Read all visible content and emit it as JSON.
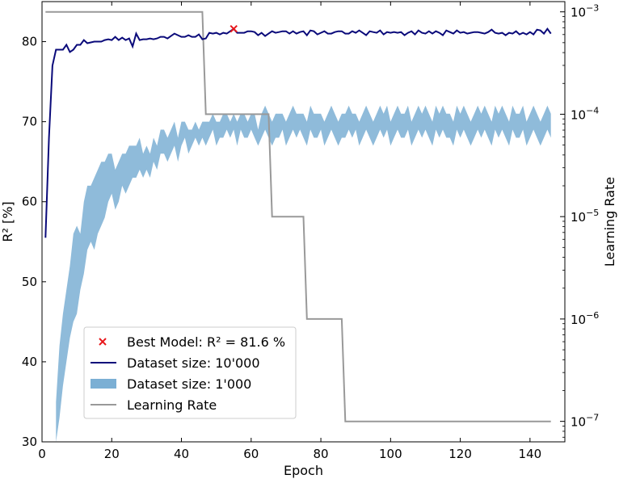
{
  "chart_data": {
    "type": "line",
    "xlabel": "Epoch",
    "ylabel_left": "R² [%]",
    "ylabel_right": "Learning Rate",
    "xlim": [
      0,
      150
    ],
    "ylim_left": [
      30,
      85
    ],
    "ylim_right_log10": [
      -7.2,
      -2.9
    ],
    "right_axis_scale": "log",
    "x_ticks": [
      0,
      20,
      40,
      60,
      80,
      100,
      120,
      140
    ],
    "y_left_ticks": [
      30,
      40,
      50,
      60,
      70,
      80
    ],
    "y_right_ticks": [
      {
        "value": 1e-07,
        "base": "10",
        "exp": "−7"
      },
      {
        "value": 1e-06,
        "base": "10",
        "exp": "−6"
      },
      {
        "value": 1e-05,
        "base": "10",
        "exp": "−5"
      },
      {
        "value": 0.0001,
        "base": "10",
        "exp": "−4"
      },
      {
        "value": 0.001,
        "base": "10",
        "exp": "−3"
      }
    ],
    "legend_position": "lower-left",
    "legend": [
      {
        "key": "best",
        "label_prefix": "Best Model: ",
        "label_math": "R² = 81.6 %"
      },
      {
        "key": "large",
        "label": "Dataset size: 10'000"
      },
      {
        "key": "small",
        "label": "Dataset size: 1'000"
      },
      {
        "key": "lr",
        "label": "Learning Rate"
      }
    ],
    "best_model": {
      "epoch": 55,
      "r2": 81.6
    },
    "series_large": {
      "color": "#0a0a7a",
      "x": [
        1,
        2,
        3,
        4,
        5,
        6,
        7,
        8,
        9,
        10,
        11,
        12,
        13,
        14,
        15,
        16,
        17,
        18,
        19,
        20,
        21,
        22,
        23,
        24,
        25,
        26,
        27,
        28,
        29,
        30,
        31,
        32,
        33,
        34,
        35,
        36,
        37,
        38,
        39,
        40,
        41,
        42,
        43,
        44,
        45,
        46,
        47,
        48,
        49,
        50,
        51,
        52,
        53,
        54,
        55,
        56,
        57,
        58,
        59,
        60,
        61,
        62,
        63,
        64,
        65,
        66,
        67,
        68,
        69,
        70,
        71,
        72,
        73,
        74,
        75,
        76,
        77,
        78,
        79,
        80,
        81,
        82,
        83,
        84,
        85,
        86,
        87,
        88,
        89,
        90,
        91,
        92,
        93,
        94,
        95,
        96,
        97,
        98,
        99,
        100,
        101,
        102,
        103,
        104,
        105,
        106,
        107,
        108,
        109,
        110,
        111,
        112,
        113,
        114,
        115,
        116,
        117,
        118,
        119,
        120,
        121,
        122,
        123,
        124,
        125,
        126,
        127,
        128,
        129,
        130,
        131,
        132,
        133,
        134,
        135,
        136,
        137,
        138,
        139,
        140,
        141,
        142,
        143,
        144,
        145,
        146
      ],
      "y": [
        55.5,
        68,
        77,
        79,
        79,
        79,
        79.6,
        78.7,
        79,
        79.6,
        79.6,
        80.2,
        79.8,
        79.9,
        80,
        80,
        80,
        80.2,
        80.3,
        80.2,
        80.6,
        80.2,
        80.5,
        80.2,
        80.4,
        79.4,
        81,
        80.2,
        80.3,
        80.3,
        80.4,
        80.3,
        80.4,
        80.6,
        80.6,
        80.4,
        80.7,
        81,
        80.8,
        80.6,
        80.6,
        80.8,
        80.6,
        80.6,
        80.9,
        80.3,
        80.4,
        81.1,
        81,
        81.1,
        80.9,
        81.1,
        81,
        81.3,
        81.6,
        81.1,
        81.1,
        81.1,
        81.3,
        81.3,
        81.2,
        80.8,
        81.1,
        80.7,
        81,
        81.3,
        81.1,
        81.2,
        81.3,
        81.3,
        81,
        81.3,
        81,
        81.2,
        81.3,
        80.8,
        81.4,
        81.3,
        80.9,
        81.1,
        81.3,
        81,
        81,
        81.2,
        81.3,
        81.3,
        81,
        81,
        81.3,
        81.1,
        81.4,
        81.1,
        80.8,
        81.3,
        81.2,
        81.1,
        81.4,
        80.9,
        81.2,
        81.1,
        81.2,
        81.1,
        81.2,
        80.8,
        81.1,
        81.3,
        80.9,
        81.4,
        81.1,
        81,
        81.3,
        81,
        81.3,
        81.1,
        80.8,
        81.4,
        81.2,
        81,
        81.4,
        81.1,
        81.2,
        81,
        81.1,
        81.2,
        81.2,
        81.1,
        81,
        81.2,
        81.5,
        81.1,
        81,
        81.1,
        80.8,
        81.1,
        81,
        81.3,
        80.9,
        81.1,
        80.9,
        81.2,
        80.9,
        81.5,
        81.4,
        81,
        81.6,
        81
      ]
    },
    "series_small_band": {
      "color": "#7bafd4",
      "x": [
        4,
        5,
        6,
        7,
        8,
        9,
        10,
        11,
        12,
        13,
        14,
        15,
        16,
        17,
        18,
        19,
        20,
        21,
        22,
        23,
        24,
        25,
        26,
        27,
        28,
        29,
        30,
        31,
        32,
        33,
        34,
        35,
        36,
        37,
        38,
        39,
        40,
        41,
        42,
        43,
        44,
        45,
        46,
        47,
        48,
        49,
        50,
        51,
        52,
        53,
        54,
        55,
        56,
        57,
        58,
        59,
        60,
        61,
        62,
        63,
        64,
        65,
        66,
        67,
        68,
        69,
        70,
        71,
        72,
        73,
        74,
        75,
        76,
        77,
        78,
        79,
        80,
        81,
        82,
        83,
        84,
        85,
        86,
        87,
        88,
        89,
        90,
        91,
        92,
        93,
        94,
        95,
        96,
        97,
        98,
        99,
        100,
        101,
        102,
        103,
        104,
        105,
        106,
        107,
        108,
        109,
        110,
        111,
        112,
        113,
        114,
        115,
        116,
        117,
        118,
        119,
        120,
        121,
        122,
        123,
        124,
        125,
        126,
        127,
        128,
        129,
        130,
        131,
        132,
        133,
        134,
        135,
        136,
        137,
        138,
        139,
        140,
        141,
        142,
        143,
        144,
        145,
        146
      ],
      "lower": [
        30,
        33,
        37,
        40,
        43,
        45,
        46,
        49,
        51,
        54,
        55,
        54,
        56,
        57,
        58,
        60,
        61,
        59,
        60,
        62,
        61,
        62,
        63,
        63,
        64,
        63,
        64,
        63,
        65,
        64,
        66,
        66,
        65,
        66,
        67,
        65,
        67,
        68,
        66,
        67,
        68,
        67,
        68,
        67,
        68,
        69,
        67,
        68,
        68,
        69,
        68,
        69,
        67,
        69,
        68,
        68,
        69,
        68,
        67,
        68,
        69,
        68,
        67,
        68,
        68,
        69,
        67,
        68,
        69,
        68,
        69,
        68,
        67,
        69,
        68,
        68,
        69,
        67,
        68,
        69,
        68,
        67,
        68,
        68,
        69,
        68,
        69,
        67,
        68,
        69,
        68,
        67,
        68,
        69,
        68,
        69,
        67,
        68,
        69,
        68,
        68,
        69,
        67,
        68,
        69,
        68,
        69,
        68,
        67,
        69,
        68,
        69,
        68,
        68,
        67,
        69,
        68,
        69,
        68,
        67,
        68,
        69,
        68,
        69,
        68,
        67,
        69,
        68,
        69,
        68,
        67,
        69,
        68,
        68,
        69,
        67,
        68,
        69,
        68,
        67,
        68,
        69,
        68
      ],
      "upper": [
        35,
        42,
        46,
        49,
        52,
        56,
        57,
        56,
        60,
        62,
        62,
        63,
        64,
        65,
        65,
        66,
        66,
        64,
        65,
        66,
        66,
        67,
        67,
        67,
        68,
        66,
        67,
        66,
        68,
        67,
        69,
        69,
        68,
        69,
        70,
        68,
        70,
        70,
        69,
        69,
        70,
        69,
        70,
        70,
        70,
        71,
        70,
        70,
        71,
        71,
        70,
        71,
        70,
        71,
        71,
        70,
        71,
        71,
        69,
        71,
        72,
        71,
        70,
        71,
        71,
        71,
        70,
        71,
        72,
        71,
        71,
        71,
        70,
        72,
        71,
        71,
        71,
        70,
        71,
        72,
        71,
        70,
        71,
        71,
        72,
        71,
        71,
        70,
        71,
        72,
        71,
        70,
        71,
        72,
        71,
        72,
        70,
        71,
        72,
        71,
        71,
        72,
        70,
        71,
        72,
        71,
        72,
        71,
        70,
        72,
        71,
        72,
        71,
        71,
        70,
        72,
        71,
        72,
        71,
        70,
        71,
        72,
        71,
        72,
        71,
        70,
        72,
        71,
        72,
        71,
        70,
        72,
        71,
        71,
        72,
        70,
        71,
        72,
        71,
        70,
        71,
        72,
        71
      ]
    },
    "series_lr": {
      "color": "#999999",
      "x": [
        1,
        46,
        47,
        65,
        66,
        75,
        76,
        86,
        87,
        146
      ],
      "y": [
        0.001,
        0.001,
        0.0001,
        0.0001,
        1e-05,
        1e-05,
        1e-06,
        1e-06,
        1e-07,
        1e-07
      ]
    }
  }
}
